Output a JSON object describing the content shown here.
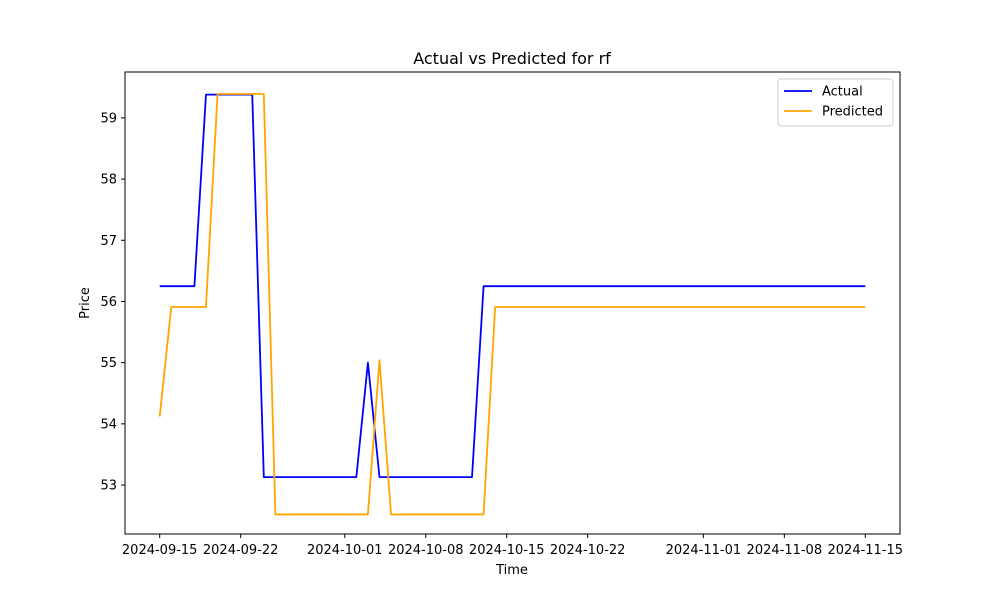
{
  "chart_data": {
    "type": "line",
    "title": "Actual vs Predicted for rf",
    "xlabel": "Time",
    "ylabel": "Price",
    "x_type": "date",
    "xlim": [
      "2024-09-12",
      "2024-11-18"
    ],
    "ylim": [
      52.2,
      59.75
    ],
    "x_ticks": [
      "2024-09-15",
      "2024-09-22",
      "2024-10-01",
      "2024-10-08",
      "2024-10-15",
      "2024-10-22",
      "2024-11-01",
      "2024-11-08",
      "2024-11-15"
    ],
    "y_ticks": [
      53,
      54,
      55,
      56,
      57,
      58,
      59
    ],
    "grid": false,
    "legend_position": "top-right",
    "series": [
      {
        "name": "Actual",
        "color": "#0000ff",
        "points": [
          [
            "2024-09-15",
            56.25
          ],
          [
            "2024-09-18",
            56.25
          ],
          [
            "2024-09-19",
            59.38
          ],
          [
            "2024-09-23",
            59.38
          ],
          [
            "2024-09-24",
            53.13
          ],
          [
            "2024-10-02",
            53.13
          ],
          [
            "2024-10-03",
            55.0
          ],
          [
            "2024-10-04",
            53.13
          ],
          [
            "2024-10-12",
            53.13
          ],
          [
            "2024-10-13",
            56.25
          ],
          [
            "2024-11-15",
            56.25
          ]
        ]
      },
      {
        "name": "Predicted",
        "color": "#ffa500",
        "points": [
          [
            "2024-09-15",
            54.12
          ],
          [
            "2024-09-16",
            55.91
          ],
          [
            "2024-09-19",
            55.91
          ],
          [
            "2024-09-20",
            59.39
          ],
          [
            "2024-09-24",
            59.39
          ],
          [
            "2024-09-25",
            52.52
          ],
          [
            "2024-10-03",
            52.52
          ],
          [
            "2024-10-04",
            55.04
          ],
          [
            "2024-10-05",
            52.52
          ],
          [
            "2024-10-13",
            52.52
          ],
          [
            "2024-10-14",
            55.91
          ],
          [
            "2024-11-15",
            55.91
          ]
        ]
      }
    ]
  }
}
